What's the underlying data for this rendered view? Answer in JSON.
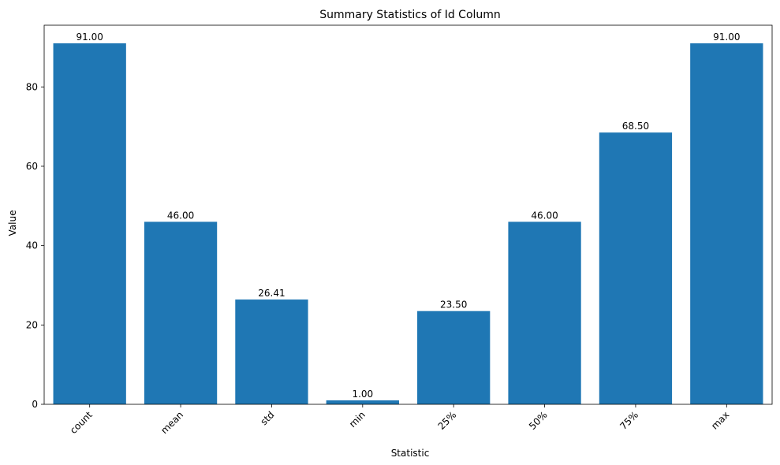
{
  "chart_data": {
    "type": "bar",
    "title": "Summary Statistics of Id Column",
    "xlabel": "Statistic",
    "ylabel": "Value",
    "categories": [
      "count",
      "mean",
      "std",
      "min",
      "25%",
      "50%",
      "75%",
      "max"
    ],
    "values": [
      91.0,
      46.0,
      26.41,
      1.0,
      23.5,
      46.0,
      68.5,
      91.0
    ],
    "value_labels": [
      "91.00",
      "46.00",
      "26.41",
      "1.00",
      "23.50",
      "46.00",
      "68.50",
      "91.00"
    ],
    "ylim": [
      0,
      95.55
    ],
    "yticks": [
      0,
      20,
      40,
      60,
      80
    ],
    "grid": false,
    "bar_color": "#1f77b4",
    "xtick_rotation_deg": 45
  }
}
